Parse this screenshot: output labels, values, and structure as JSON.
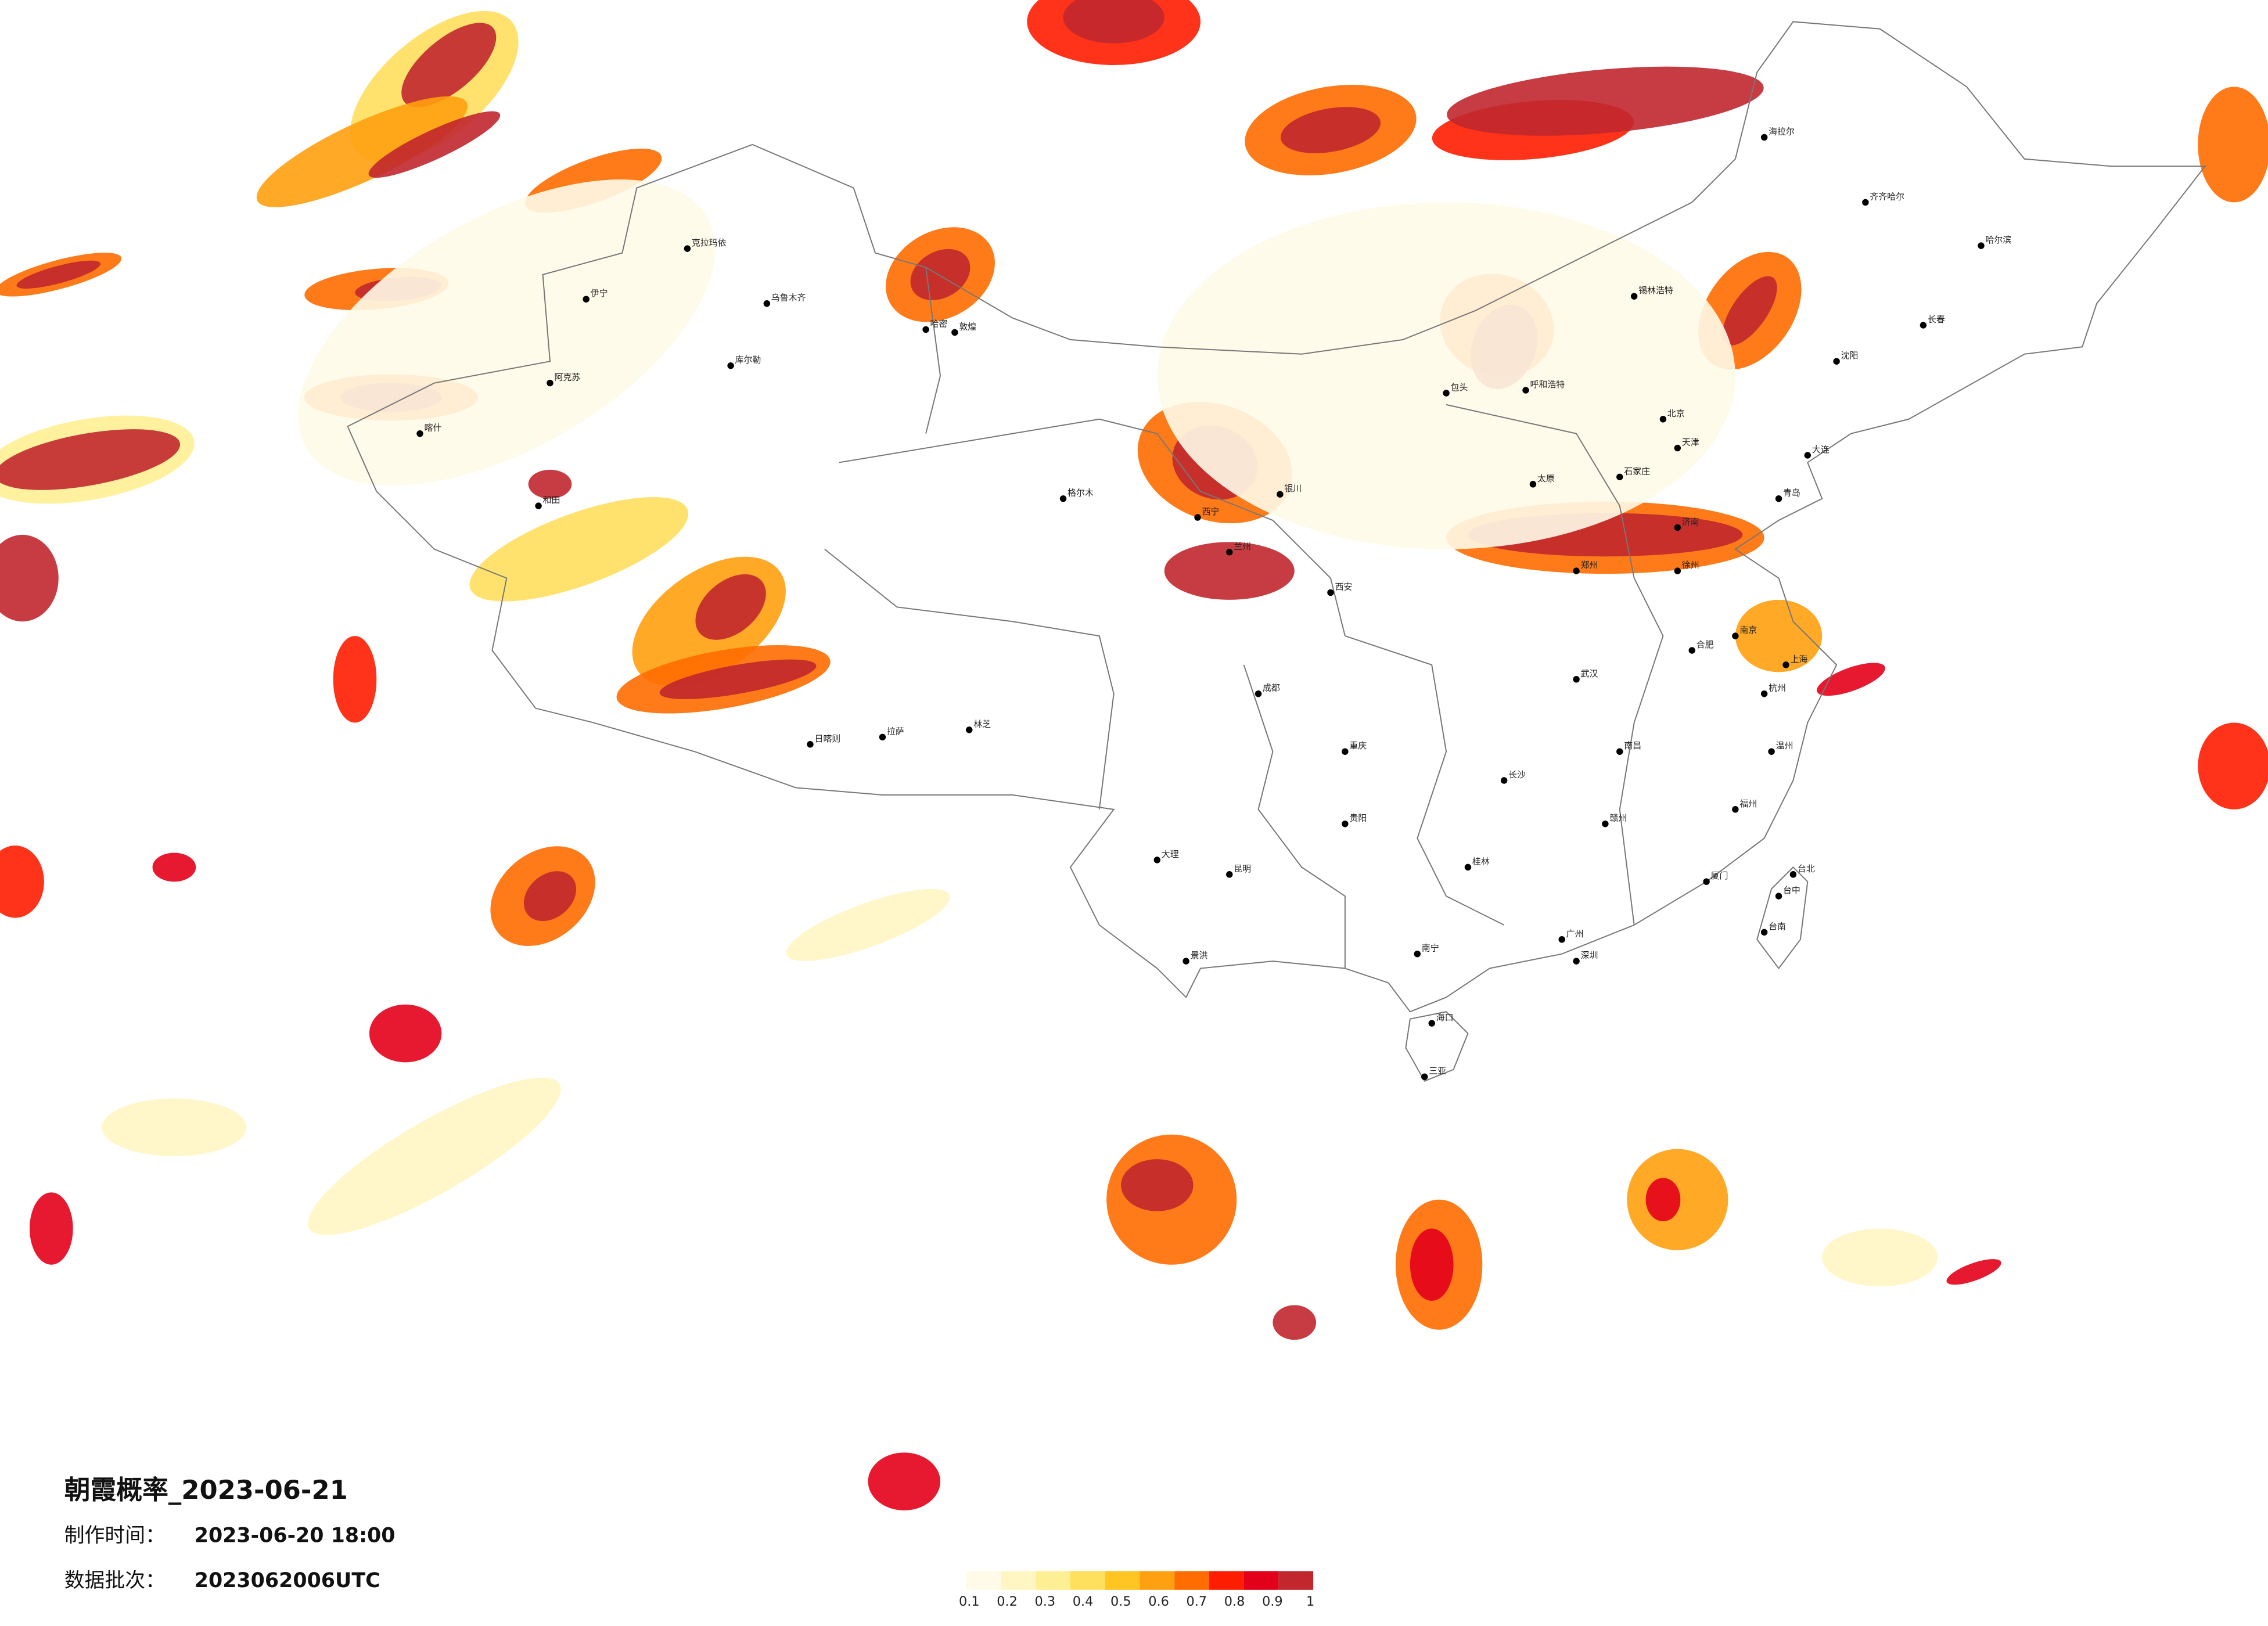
{
  "header": {
    "title": "朝霞概率_2023-06-21",
    "production_time_label": "制作时间：",
    "production_time": "2023-06-20 18:00",
    "batch_label": "数据批次：",
    "batch": "2023062006UTC"
  },
  "legend": {
    "colors": [
      "#fffbe8",
      "#fff6c4",
      "#ffef94",
      "#ffdf5e",
      "#ffc523",
      "#ffa010",
      "#ff6c00",
      "#ff1d00",
      "#e3001a",
      "#c1272d"
    ],
    "ticks": [
      0.1,
      0.2,
      0.3,
      0.4,
      0.5,
      0.6,
      0.7,
      0.8,
      0.9,
      1
    ]
  },
  "cities": [
    "克拉玛依",
    "伊宁",
    "乌鲁木齐",
    "库尔勒",
    "阿克苏",
    "喀什",
    "和田",
    "哈密",
    "敦煌",
    "格尔木",
    "西宁",
    "兰州",
    "银川",
    "呼和浩特",
    "包头",
    "北京",
    "天津",
    "石家庄",
    "太原",
    "济南",
    "郑州",
    "西安",
    "成都",
    "重庆",
    "拉萨",
    "日喀则",
    "林芝",
    "昆明",
    "贵阳",
    "南宁",
    "海口",
    "三亚",
    "长沙",
    "武汉",
    "南昌",
    "合肥",
    "南京",
    "上海",
    "杭州",
    "福州",
    "厦门",
    "广州",
    "深圳",
    "台北",
    "台中",
    "台南",
    "沈阳",
    "长春",
    "哈尔滨",
    "大连",
    "青岛",
    "齐齐哈尔",
    "海拉尔",
    "锡林浩特",
    "大理",
    "景洪",
    "桂林",
    "赣州",
    "温州",
    "徐州"
  ]
}
